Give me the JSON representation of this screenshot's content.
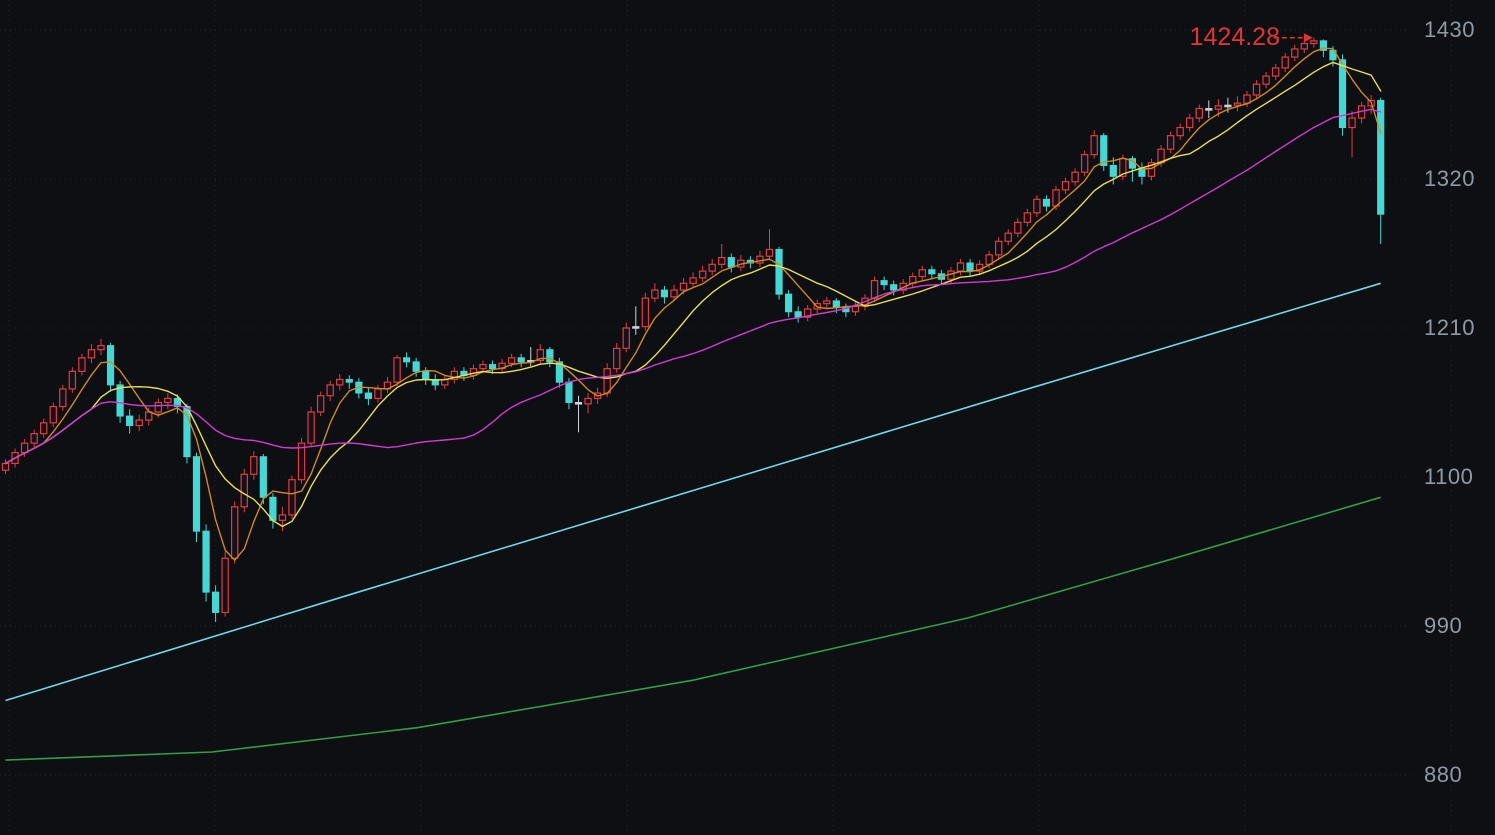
{
  "chart_data": {
    "type": "candlestick",
    "title": "",
    "xlabel": "",
    "ylabel": "",
    "y_axis": {
      "ticks": [
        1430,
        1320,
        1210,
        1100,
        990,
        880
      ]
    },
    "annotation": {
      "text": "1424.28",
      "value": 1424.28,
      "target_index": 137,
      "color": "#e03535"
    },
    "colors": {
      "up": "#e03e3e",
      "down": "#44d7d4",
      "doji": "#ccd3da",
      "grid": "#262833",
      "axis_text": "#9099a6",
      "background": "#0e0f13"
    },
    "overlays": [
      {
        "name": "MA5",
        "type": "sma",
        "period": 5,
        "color": "#d08a20",
        "width": 1.4
      },
      {
        "name": "MA10",
        "type": "sma",
        "period": 10,
        "color": "#e8df55",
        "width": 1.4
      },
      {
        "name": "MA30",
        "type": "sma",
        "period": 30,
        "color": "#d23ad2",
        "width": 1.4
      },
      {
        "name": "MA-long",
        "type": "polyline",
        "color": "#6fd8ea",
        "width": 1.6,
        "points": [
          [
            0,
            935
          ],
          [
            0.25,
            1013
          ],
          [
            0.5,
            1090
          ],
          [
            0.75,
            1167
          ],
          [
            1,
            1243
          ]
        ]
      },
      {
        "name": "MA-longest",
        "type": "polyline",
        "color": "#2f9e44",
        "width": 1.6,
        "points": [
          [
            0,
            891
          ],
          [
            0.15,
            897
          ],
          [
            0.3,
            915
          ],
          [
            0.5,
            950
          ],
          [
            0.7,
            996
          ],
          [
            0.85,
            1040
          ],
          [
            1,
            1085
          ]
        ]
      }
    ],
    "candles": [
      [
        1105,
        1113,
        1102,
        1110
      ],
      [
        1110,
        1121,
        1107,
        1118
      ],
      [
        1118,
        1128,
        1115,
        1125
      ],
      [
        1125,
        1135,
        1122,
        1132
      ],
      [
        1132,
        1143,
        1129,
        1140
      ],
      [
        1140,
        1155,
        1137,
        1152
      ],
      [
        1152,
        1168,
        1149,
        1165
      ],
      [
        1165,
        1181,
        1162,
        1178
      ],
      [
        1178,
        1191,
        1175,
        1188
      ],
      [
        1188,
        1198,
        1184,
        1194
      ],
      [
        1194,
        1202,
        1190,
        1197
      ],
      [
        1197,
        1199,
        1163,
        1168
      ],
      [
        1168,
        1171,
        1140,
        1145
      ],
      [
        1145,
        1150,
        1132,
        1138
      ],
      [
        1138,
        1146,
        1134,
        1142
      ],
      [
        1142,
        1151,
        1138,
        1148
      ],
      [
        1148,
        1158,
        1144,
        1155
      ],
      [
        1155,
        1162,
        1150,
        1158
      ],
      [
        1158,
        1161,
        1147,
        1152
      ],
      [
        1152,
        1154,
        1110,
        1115
      ],
      [
        1115,
        1118,
        1052,
        1060
      ],
      [
        1060,
        1065,
        1008,
        1015
      ],
      [
        1015,
        1020,
        993,
        1000
      ],
      [
        1000,
        1045,
        997,
        1040
      ],
      [
        1040,
        1082,
        1036,
        1078
      ],
      [
        1078,
        1106,
        1074,
        1102
      ],
      [
        1102,
        1119,
        1098,
        1115
      ],
      [
        1115,
        1117,
        1080,
        1085
      ],
      [
        1085,
        1088,
        1062,
        1068
      ],
      [
        1068,
        1078,
        1060,
        1072
      ],
      [
        1072,
        1101,
        1069,
        1098
      ],
      [
        1098,
        1129,
        1095,
        1125
      ],
      [
        1125,
        1152,
        1122,
        1148
      ],
      [
        1148,
        1163,
        1145,
        1160
      ],
      [
        1160,
        1171,
        1156,
        1168
      ],
      [
        1168,
        1176,
        1164,
        1172
      ],
      [
        1172,
        1175,
        1165,
        1170
      ],
      [
        1170,
        1173,
        1158,
        1162
      ],
      [
        1162,
        1166,
        1153,
        1158
      ],
      [
        1158,
        1168,
        1155,
        1165
      ],
      [
        1165,
        1174,
        1162,
        1170
      ],
      [
        1170,
        1190,
        1167,
        1188
      ],
      [
        1188,
        1192,
        1181,
        1185
      ],
      [
        1185,
        1188,
        1174,
        1178
      ],
      [
        1178,
        1181,
        1168,
        1172
      ],
      [
        1172,
        1176,
        1164,
        1168
      ],
      [
        1168,
        1175,
        1165,
        1172
      ],
      [
        1172,
        1181,
        1169,
        1178
      ],
      [
        1178,
        1181,
        1171,
        1175
      ],
      [
        1175,
        1183,
        1172,
        1180
      ],
      [
        1180,
        1186,
        1177,
        1183
      ],
      [
        1183,
        1186,
        1176,
        1180
      ],
      [
        1180,
        1187,
        1177,
        1184
      ],
      [
        1184,
        1191,
        1181,
        1188
      ],
      [
        1188,
        1191,
        1181,
        1185
      ],
      [
        1185,
        1196,
        1182,
        1186
      ],
      [
        1186,
        1198,
        1183,
        1194
      ],
      [
        1194,
        1196,
        1181,
        1185
      ],
      [
        1185,
        1188,
        1166,
        1170
      ],
      [
        1170,
        1173,
        1150,
        1155
      ],
      [
        1155,
        1160,
        1133,
        1154
      ],
      [
        1154,
        1162,
        1147,
        1158
      ],
      [
        1158,
        1166,
        1154,
        1162
      ],
      [
        1162,
        1184,
        1159,
        1180
      ],
      [
        1180,
        1199,
        1177,
        1195
      ],
      [
        1195,
        1214,
        1192,
        1210
      ],
      [
        1210,
        1226,
        1205,
        1211
      ],
      [
        1211,
        1236,
        1208,
        1232
      ],
      [
        1232,
        1243,
        1229,
        1238
      ],
      [
        1238,
        1241,
        1228,
        1233
      ],
      [
        1233,
        1242,
        1230,
        1238
      ],
      [
        1238,
        1247,
        1235,
        1243
      ],
      [
        1243,
        1251,
        1240,
        1247
      ],
      [
        1247,
        1256,
        1244,
        1252
      ],
      [
        1252,
        1261,
        1249,
        1257
      ],
      [
        1257,
        1272,
        1254,
        1262
      ],
      [
        1262,
        1265,
        1251,
        1255
      ],
      [
        1255,
        1264,
        1252,
        1260
      ],
      [
        1260,
        1263,
        1254,
        1258
      ],
      [
        1258,
        1267,
        1255,
        1263
      ],
      [
        1263,
        1283,
        1260,
        1268
      ],
      [
        1268,
        1270,
        1231,
        1235
      ],
      [
        1235,
        1238,
        1218,
        1222
      ],
      [
        1222,
        1226,
        1214,
        1218
      ],
      [
        1218,
        1227,
        1215,
        1224
      ],
      [
        1224,
        1231,
        1221,
        1228
      ],
      [
        1228,
        1233,
        1224,
        1230
      ],
      [
        1230,
        1232,
        1221,
        1225
      ],
      [
        1225,
        1228,
        1218,
        1222
      ],
      [
        1222,
        1229,
        1219,
        1226
      ],
      [
        1226,
        1235,
        1223,
        1232
      ],
      [
        1232,
        1248,
        1229,
        1245
      ],
      [
        1245,
        1248,
        1238,
        1242
      ],
      [
        1242,
        1245,
        1234,
        1238
      ],
      [
        1238,
        1246,
        1235,
        1243
      ],
      [
        1243,
        1251,
        1240,
        1248
      ],
      [
        1248,
        1256,
        1245,
        1253
      ],
      [
        1253,
        1256,
        1246,
        1250
      ],
      [
        1250,
        1253,
        1242,
        1246
      ],
      [
        1246,
        1255,
        1243,
        1252
      ],
      [
        1252,
        1261,
        1249,
        1258
      ],
      [
        1258,
        1261,
        1248,
        1252
      ],
      [
        1252,
        1260,
        1249,
        1257
      ],
      [
        1257,
        1267,
        1254,
        1264
      ],
      [
        1264,
        1277,
        1261,
        1274
      ],
      [
        1274,
        1283,
        1271,
        1280
      ],
      [
        1280,
        1291,
        1277,
        1288
      ],
      [
        1288,
        1298,
        1285,
        1295
      ],
      [
        1295,
        1308,
        1292,
        1305
      ],
      [
        1305,
        1308,
        1296,
        1300
      ],
      [
        1300,
        1315,
        1297,
        1312
      ],
      [
        1312,
        1321,
        1309,
        1318
      ],
      [
        1318,
        1328,
        1315,
        1325
      ],
      [
        1325,
        1341,
        1322,
        1338
      ],
      [
        1338,
        1356,
        1335,
        1352
      ],
      [
        1352,
        1354,
        1326,
        1330
      ],
      [
        1330,
        1336,
        1316,
        1322
      ],
      [
        1322,
        1338,
        1319,
        1335
      ],
      [
        1335,
        1337,
        1318,
        1328
      ],
      [
        1328,
        1332,
        1316,
        1322
      ],
      [
        1322,
        1335,
        1319,
        1332
      ],
      [
        1332,
        1345,
        1329,
        1342
      ],
      [
        1342,
        1355,
        1339,
        1352
      ],
      [
        1352,
        1361,
        1349,
        1358
      ],
      [
        1358,
        1368,
        1355,
        1365
      ],
      [
        1365,
        1375,
        1362,
        1372
      ],
      [
        1372,
        1378,
        1365,
        1371.5
      ],
      [
        1371.5,
        1379,
        1366,
        1374
      ],
      [
        1374,
        1380,
        1369,
        1374.5
      ],
      [
        1374.5,
        1381,
        1370,
        1376
      ],
      [
        1376,
        1385,
        1373,
        1382
      ],
      [
        1382,
        1393,
        1379,
        1390
      ],
      [
        1390,
        1399,
        1387,
        1396
      ],
      [
        1396,
        1405,
        1393,
        1402
      ],
      [
        1402,
        1413,
        1399,
        1410
      ],
      [
        1410,
        1419,
        1407,
        1416
      ],
      [
        1416,
        1422,
        1413,
        1420
      ],
      [
        1420,
        1424.28,
        1417,
        1422
      ],
      [
        1422,
        1423,
        1410,
        1415
      ],
      [
        1415,
        1418,
        1403,
        1408
      ],
      [
        1408,
        1412,
        1352,
        1358
      ],
      [
        1358,
        1370,
        1336,
        1365
      ],
      [
        1365,
        1377,
        1361,
        1374
      ],
      [
        1374,
        1382,
        1368,
        1378
      ],
      [
        1378,
        1380,
        1272,
        1294
      ]
    ]
  }
}
